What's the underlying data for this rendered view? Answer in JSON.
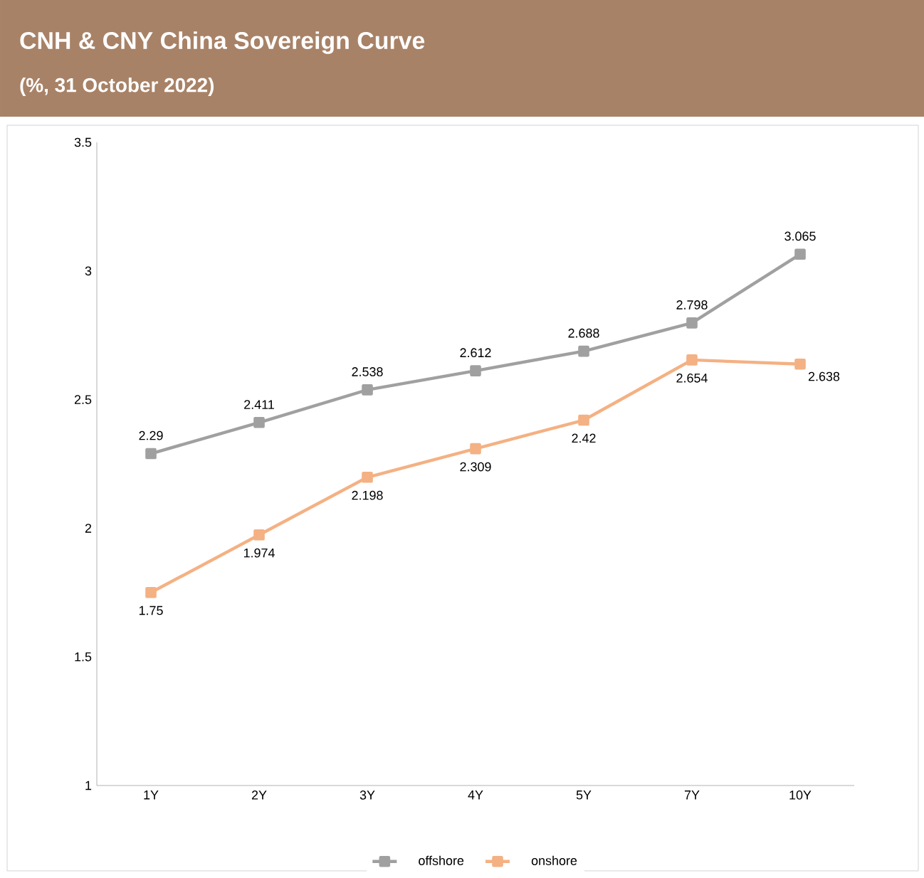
{
  "chart_data": {
    "type": "line",
    "title": "CNH & CNY China Sovereign Curve",
    "subtitle": "(%, 31 October 2022)",
    "categories": [
      "1Y",
      "2Y",
      "3Y",
      "4Y",
      "5Y",
      "7Y",
      "10Y"
    ],
    "series": [
      {
        "name": "offshore",
        "color": "#a0a0a0",
        "values": [
          2.29,
          2.411,
          2.538,
          2.612,
          2.688,
          2.798,
          3.065
        ]
      },
      {
        "name": "onshore",
        "color": "#f4b183",
        "values": [
          1.75,
          1.974,
          2.198,
          2.309,
          2.42,
          2.654,
          2.638
        ]
      }
    ],
    "ylim": [
      1,
      3.5
    ],
    "yticks": [
      1,
      1.5,
      2,
      2.5,
      3,
      3.5
    ],
    "grid": false,
    "legend": "bottom",
    "marker": "square",
    "line_style": "solid",
    "data_labels": true
  }
}
